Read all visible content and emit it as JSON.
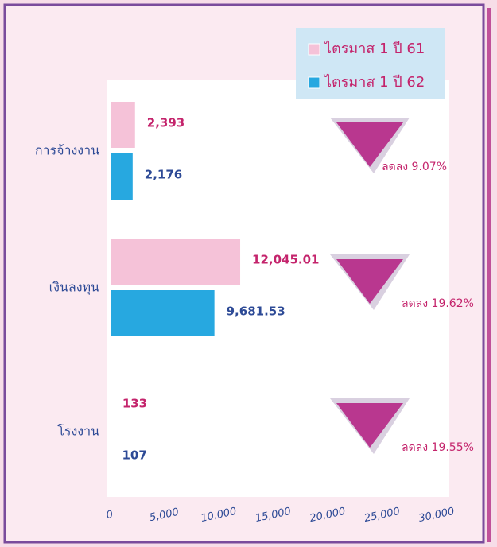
{
  "chart_data": {
    "type": "hbar",
    "categories": [
      "การจ้างงาน",
      "เงินลงทุน",
      "โรงงาน"
    ],
    "series": [
      {
        "name": "ไตรมาส 1 ปี 61",
        "color": "#f5c2d8",
        "label_color": "#c4246c",
        "values": [
          2393,
          12045.01,
          133
        ],
        "value_labels": [
          "2,393",
          "12,045.01",
          "133"
        ]
      },
      {
        "name": "ไตรมาส 1 ปี 62",
        "color": "#27a8e0",
        "label_color": "#2d4a96",
        "values": [
          2176,
          9681.53,
          107
        ],
        "value_labels": [
          "2,176",
          "9,681.53",
          "107"
        ]
      }
    ],
    "xlim": [
      0,
      30000
    ],
    "xticks": [
      0,
      {
        "value": 5000,
        "label": "5,000"
      },
      {
        "value": 10000,
        "label": "10,000"
      },
      {
        "value": 15000,
        "label": "15,000"
      },
      {
        "value": 20000,
        "label": "20,000"
      },
      {
        "value": 25000,
        "label": "25,000"
      },
      {
        "value": 30000,
        "label": "30,000"
      }
    ],
    "annotations": [
      "ลดลง 9.07%",
      "ลดลง 19.62%",
      "ลดลง 19.55%"
    ],
    "legend": "top-right"
  }
}
